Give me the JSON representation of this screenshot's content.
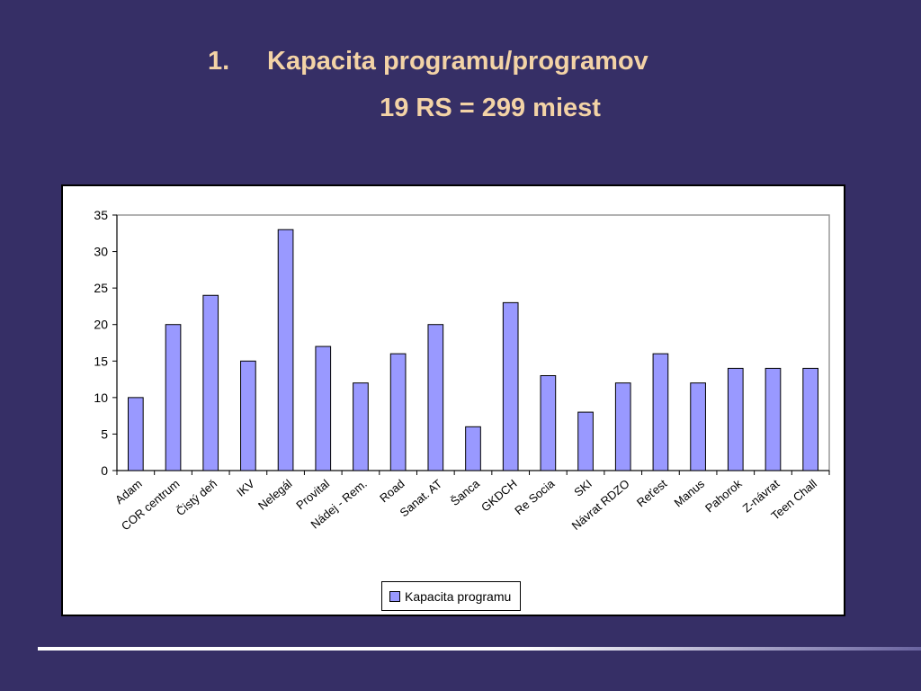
{
  "slide": {
    "title_number": "1.",
    "title": "Kapacita programu/programov",
    "subtitle": "19 RS = 299 miest"
  },
  "colors": {
    "background": "#362f66",
    "title": "#f3d3a6",
    "bar_fill": "#9999ff"
  },
  "chart_data": {
    "type": "bar",
    "categories": [
      "Adam",
      "COR centrum",
      "Čistý deň",
      "IKV",
      "Nelegál",
      "Provital",
      "Nádej - Rem.",
      "Road",
      "Sanat. AT",
      "Šanca",
      "GKDCH",
      "Re Socia",
      "SKI",
      "Návrat RDZO",
      "Reťest",
      "Manus",
      "Pahorok",
      "Z-návrat",
      "Teen Chall"
    ],
    "series": [
      {
        "name": "Kapacita programu",
        "values": [
          10,
          20,
          24,
          15,
          33,
          17,
          12,
          16,
          20,
          6,
          23,
          13,
          8,
          12,
          16,
          12,
          14,
          14,
          14
        ]
      }
    ],
    "ylim": [
      0,
      35
    ],
    "yticks": [
      "0",
      "5",
      "10",
      "15",
      "20",
      "25",
      "30",
      "35"
    ],
    "legend_position": "bottom"
  }
}
